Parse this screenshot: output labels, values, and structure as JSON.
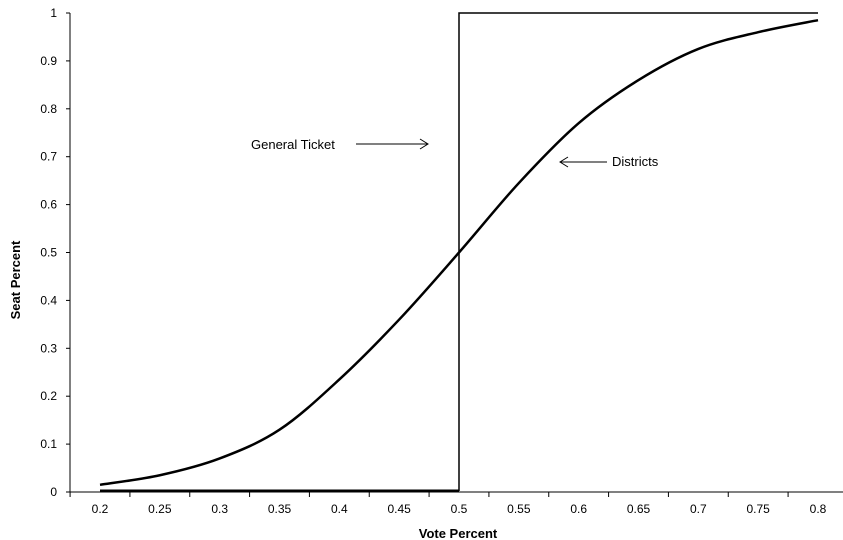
{
  "chart_data": {
    "type": "line",
    "title": "",
    "xlabel": "Vote Percent",
    "ylabel": "Seat Percent",
    "xlim": [
      0.2,
      0.8
    ],
    "ylim": [
      0,
      1
    ],
    "x_ticks": [
      "0.2",
      "0.25",
      "0.3",
      "0.35",
      "0.4",
      "0.45",
      "0.5",
      "0.55",
      "0.6",
      "0.65",
      "0.7",
      "0.75",
      "0.8"
    ],
    "y_ticks": [
      "0",
      "0.1",
      "0.2",
      "0.3",
      "0.4",
      "0.5",
      "0.6",
      "0.7",
      "0.8",
      "0.9",
      "1"
    ],
    "grid": false,
    "legend": "none",
    "series": [
      {
        "x": [
          0.2,
          0.25,
          0.3,
          0.35,
          0.4,
          0.45,
          0.5,
          0.55,
          0.6,
          0.65,
          0.7,
          0.75,
          0.8
        ],
        "y": [
          0.015,
          0.035,
          0.07,
          0.13,
          0.235,
          0.36,
          0.5,
          0.645,
          0.77,
          0.86,
          0.925,
          0.96,
          0.985
        ]
      },
      {
        "x": [
          0.2,
          0.5,
          0.5,
          0.8
        ],
        "y": [
          0,
          0,
          1,
          1
        ]
      }
    ],
    "annotations": [
      {
        "text": "General Ticket",
        "arrow": "right"
      },
      {
        "text": "Districts",
        "arrow": "left"
      }
    ]
  }
}
